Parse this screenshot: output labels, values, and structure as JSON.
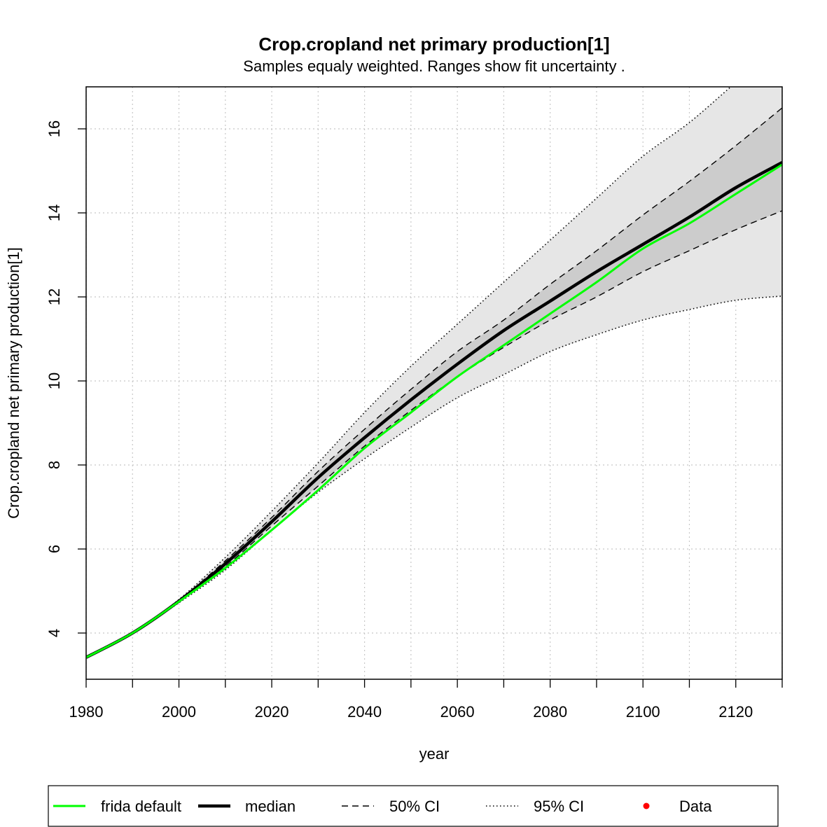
{
  "chart_data": {
    "type": "line",
    "title": "Crop.cropland net primary production[1]",
    "subtitle": "Samples equaly weighted. Ranges show  fit uncertainty .",
    "xlabel": "year",
    "ylabel": "Crop.cropland net primary production[1]",
    "xlim": [
      1980,
      2130
    ],
    "ylim": [
      2.9,
      17.0
    ],
    "x_ticks": [
      1980,
      2000,
      2020,
      2040,
      2060,
      2080,
      2100,
      2120
    ],
    "x_minor_ticks": [
      1990,
      2010,
      2030,
      2050,
      2070,
      2090,
      2110,
      2130
    ],
    "y_ticks": [
      4,
      6,
      8,
      10,
      12,
      14,
      16
    ],
    "grid": true,
    "legend_position": "bottom",
    "colors": {
      "frida_default": "#00ff00",
      "median": "#000000",
      "band_95": "#e6e6e6",
      "band_50": "#cccccc",
      "data": "#ff0000",
      "grid": "#c8c8c8"
    },
    "x": [
      1980,
      1990,
      2000,
      2010,
      2020,
      2030,
      2040,
      2050,
      2060,
      2070,
      2080,
      2090,
      2100,
      2110,
      2120,
      2130
    ],
    "series": [
      {
        "name": "frida default",
        "style": "solid-green",
        "values": [
          3.42,
          4.0,
          4.75,
          5.55,
          6.45,
          7.4,
          8.4,
          9.25,
          10.1,
          10.85,
          11.6,
          12.35,
          13.15,
          13.75,
          14.45,
          15.15
        ]
      },
      {
        "name": "median",
        "style": "thick-black",
        "values": [
          3.42,
          4.0,
          4.76,
          5.65,
          6.65,
          7.7,
          8.65,
          9.55,
          10.4,
          11.2,
          11.9,
          12.6,
          13.25,
          13.9,
          14.6,
          15.2
        ]
      },
      {
        "name": "50% CI upper",
        "style": "dashed",
        "values": [
          3.42,
          4.0,
          4.78,
          5.72,
          6.75,
          7.85,
          8.85,
          9.8,
          10.7,
          11.45,
          12.3,
          13.1,
          13.95,
          14.75,
          15.6,
          16.5
        ]
      },
      {
        "name": "50% CI lower",
        "style": "dashed",
        "values": [
          3.42,
          4.0,
          4.74,
          5.58,
          6.55,
          7.5,
          8.45,
          9.3,
          10.1,
          10.8,
          11.45,
          12.0,
          12.6,
          13.1,
          13.6,
          14.05
        ]
      },
      {
        "name": "95% CI upper",
        "style": "dotted",
        "values": [
          3.42,
          4.0,
          4.8,
          5.8,
          6.9,
          8.05,
          9.25,
          10.35,
          11.35,
          12.35,
          13.35,
          14.35,
          15.35,
          16.15,
          17.1,
          18.0
        ]
      },
      {
        "name": "95% CI lower",
        "style": "dotted",
        "values": [
          3.42,
          4.0,
          4.72,
          5.5,
          6.45,
          7.35,
          8.15,
          8.9,
          9.6,
          10.15,
          10.7,
          11.1,
          11.45,
          11.7,
          11.92,
          12.02
        ]
      }
    ],
    "legend": [
      {
        "label": "frida default",
        "symbol": "solid-green"
      },
      {
        "label": "median",
        "symbol": "thick-black"
      },
      {
        "label": "50% CI",
        "symbol": "dashed"
      },
      {
        "label": "95% CI",
        "symbol": "dotted"
      },
      {
        "label": "Data",
        "symbol": "red-dot"
      }
    ]
  }
}
